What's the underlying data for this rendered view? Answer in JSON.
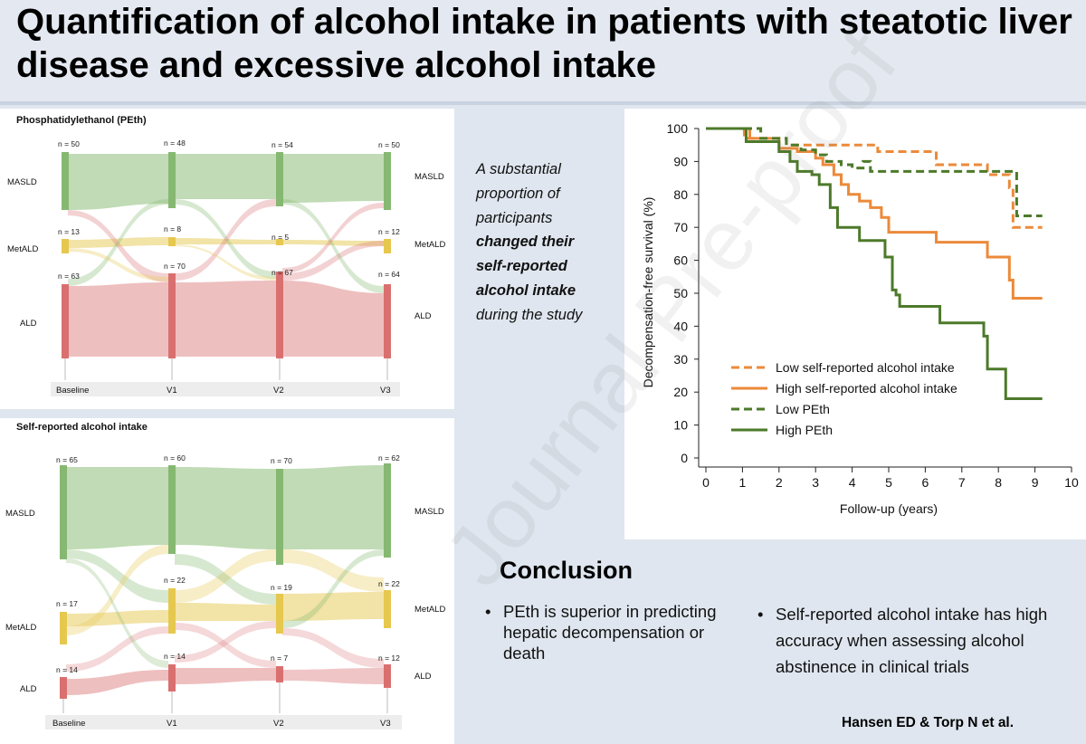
{
  "title": "Quantification of alcohol intake in patients with steatotic liver disease and excessive alcohol intake",
  "sankey_peth": {
    "title": "Phosphatidylethanol (PEth)",
    "timepoints": [
      "Baseline",
      "V1",
      "V2",
      "V3"
    ],
    "row_labels": [
      "MASLD",
      "MetALD",
      "ALD"
    ],
    "counts": {
      "MASLD": [
        "n = 50",
        "n = 48",
        "n = 54",
        "n = 50"
      ],
      "MetALD": [
        "n = 13",
        "n = 8",
        "n = 5",
        "n = 12"
      ],
      "ALD": [
        "n = 63",
        "n = 70",
        "n = 67",
        "n = 64"
      ]
    }
  },
  "sankey_self": {
    "title": "Self-reported alcohol intake",
    "timepoints": [
      "Baseline",
      "V1",
      "V2",
      "V3"
    ],
    "row_labels": [
      "MASLD",
      "MetALD",
      "ALD"
    ],
    "counts": {
      "MASLD": [
        "n = 65",
        "n = 60",
        "n = 70",
        "n = 62"
      ],
      "MetALD": [
        "n = 17",
        "n = 22",
        "n = 19",
        "n = 22"
      ],
      "ALD": [
        "n = 14",
        "n = 14",
        "n = 7",
        "n = 12"
      ]
    }
  },
  "statement": {
    "line1": "A substantial",
    "line2": "proportion of",
    "line3": "participants",
    "bold1": "changed their",
    "bold2": "self-reported",
    "bold3": "alcohol intake",
    "line4": "during the study"
  },
  "chart_data": {
    "type": "line",
    "title": "",
    "xlabel": "Follow-up (years)",
    "ylabel": "Decompensation-free survival (%)",
    "xlim": [
      0,
      10
    ],
    "ylim": [
      0,
      100
    ],
    "xticks": [
      "0",
      "1",
      "2",
      "3",
      "4",
      "5",
      "6",
      "7",
      "8",
      "9",
      "10"
    ],
    "yticks": [
      "0",
      "10",
      "20",
      "30",
      "40",
      "50",
      "60",
      "70",
      "80",
      "90",
      "100"
    ],
    "series": [
      {
        "name": "Low self-reported alcohol intake",
        "color": "#ec8a3a",
        "dashed": true,
        "x": [
          0,
          1,
          1.05,
          2.2,
          4.7,
          6.3,
          7.7,
          8.3,
          8.4,
          9.2
        ],
        "y": [
          100,
          100,
          97,
          95,
          93,
          89,
          86,
          82,
          70,
          70
        ]
      },
      {
        "name": "High self-reported alcohol intake",
        "color": "#ec8a3a",
        "dashed": false,
        "x": [
          0,
          1,
          1.2,
          2,
          2.5,
          3,
          3.2,
          3.5,
          3.7,
          3.9,
          4.2,
          4.5,
          4.8,
          5,
          6.3,
          7.7,
          8.3,
          8.4,
          9.2
        ],
        "y": [
          100,
          100,
          97,
          94,
          93,
          91,
          89,
          86,
          83,
          80,
          78,
          76,
          73,
          68.5,
          65.5,
          61,
          54,
          48.5,
          48.5
        ]
      },
      {
        "name": "Low PEth",
        "color": "#4d7a2a",
        "dashed": true,
        "x": [
          0,
          1,
          1.5,
          2.2,
          2.6,
          3,
          3.3,
          3.7,
          4,
          4.3,
          4.5,
          4.8,
          8.4,
          8.5,
          9.2
        ],
        "y": [
          100,
          100,
          97,
          95,
          93.5,
          92,
          90,
          89,
          88,
          90,
          87,
          87,
          87,
          73.5,
          73.5
        ]
      },
      {
        "name": "High PEth",
        "color": "#4d7a2a",
        "dashed": false,
        "x": [
          0,
          1,
          1.1,
          2,
          2.3,
          2.5,
          2.9,
          3.1,
          3.4,
          3.6,
          4.2,
          4.9,
          5.1,
          5.2,
          5.3,
          6.4,
          7.6,
          7.7,
          8.2,
          9.2
        ],
        "y": [
          100,
          100,
          96,
          93,
          90,
          87,
          86,
          83,
          76,
          70,
          66,
          61,
          51,
          49.5,
          46,
          41,
          37,
          27,
          18,
          18
        ]
      }
    ],
    "legend_position": "bottom-left"
  },
  "conclusion": {
    "heading": "Conclusion",
    "bullet_symbol": "•",
    "bullet1": "PEth is superior in predicting hepatic decompensation or death",
    "bullet2": "Self-reported alcohol intake has high accuracy when assessing alcohol abstinence in clinical trials"
  },
  "authors": "Hansen ED & Torp N et al.",
  "watermark": "Journal Pre-proof",
  "colors": {
    "masld": "#8dbd79",
    "metald": "#e7cc5e",
    "ald": "#de7f80",
    "orange": "#ec8a3a",
    "green": "#4d7a2a"
  }
}
